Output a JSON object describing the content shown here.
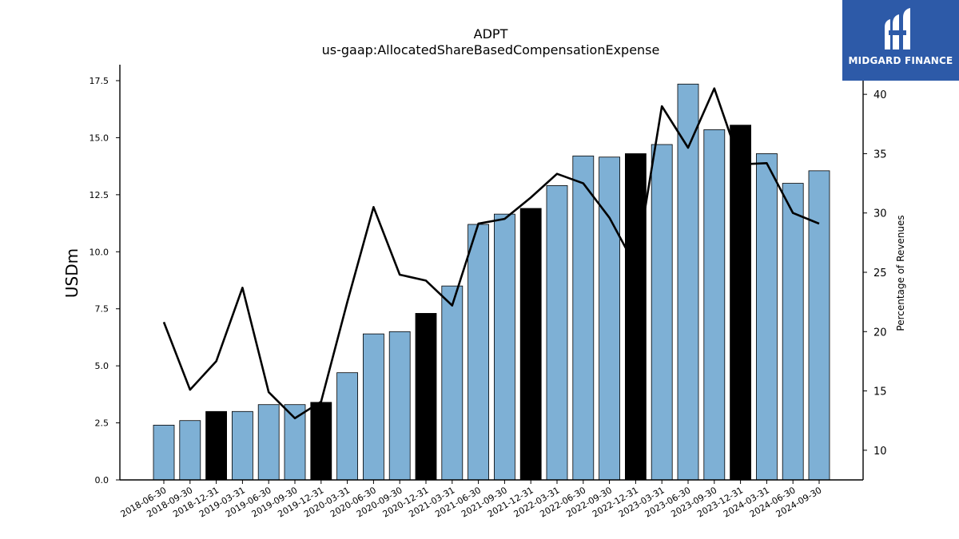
{
  "chart_data": {
    "type": "bar",
    "title": "ADPT",
    "subtitle": "us-gaap:AllocatedShareBasedCompensationExpense",
    "ylabel": "USDm",
    "ylabel_right": "Percentage of Revenues",
    "ylim": [
      0,
      18.2
    ],
    "ylim_right": [
      7.5,
      42.5
    ],
    "yticks": [
      "0.0",
      "2.5",
      "5.0",
      "7.5",
      "10.0",
      "12.5",
      "15.0",
      "17.5"
    ],
    "yticks_right": [
      "10",
      "15",
      "20",
      "25",
      "30",
      "35",
      "40"
    ],
    "categories": [
      "2018-06-30",
      "2018-09-30",
      "2018-12-31",
      "2019-03-31",
      "2019-06-30",
      "2019-09-30",
      "2019-12-31",
      "2020-03-31",
      "2020-06-30",
      "2020-09-30",
      "2020-12-31",
      "2021-03-31",
      "2021-06-30",
      "2021-09-30",
      "2021-12-31",
      "2022-03-31",
      "2022-06-30",
      "2022-09-30",
      "2022-12-31",
      "2023-03-31",
      "2023-06-30",
      "2023-09-30",
      "2023-12-31",
      "2024-03-31",
      "2024-06-30",
      "2024-09-30"
    ],
    "series": [
      {
        "type": "bar",
        "values": [
          2.4,
          2.6,
          3.0,
          3.0,
          3.3,
          3.3,
          3.4,
          4.7,
          6.4,
          6.5,
          7.3,
          8.5,
          11.2,
          11.65,
          11.9,
          12.9,
          14.2,
          14.15,
          14.3,
          14.7,
          17.35,
          15.35,
          15.55,
          14.3,
          13.0,
          13.55
        ],
        "highlight": [
          false,
          false,
          true,
          false,
          false,
          false,
          true,
          false,
          false,
          false,
          true,
          false,
          false,
          false,
          true,
          false,
          false,
          false,
          true,
          false,
          false,
          false,
          true,
          false,
          false,
          false
        ],
        "color": "#7eb0d5",
        "highlight_color": "#000000"
      },
      {
        "type": "line",
        "axis": "right",
        "values": [
          20.8,
          15.1,
          17.5,
          23.7,
          14.9,
          12.7,
          14.1,
          22.5,
          30.5,
          24.8,
          24.3,
          22.2,
          29.1,
          29.5,
          31.3,
          33.3,
          32.5,
          29.6,
          25.5,
          39.0,
          35.5,
          40.5,
          34.1,
          34.2,
          30.0,
          29.1
        ],
        "color": "#000000"
      }
    ]
  },
  "logo": {
    "text": "MIDGARD FINANCE",
    "color": "#2d5aa8"
  }
}
